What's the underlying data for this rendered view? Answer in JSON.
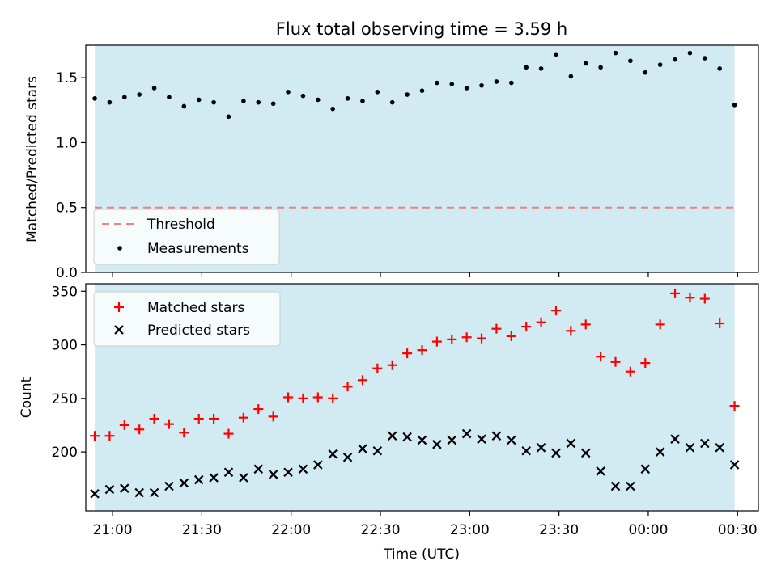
{
  "chart_data": [
    {
      "type": "scatter",
      "title": "Flux total observing time = 3.59 h",
      "ylabel": "Matched/Predicted stars",
      "xlim": [
        "20:51",
        "00:37"
      ],
      "ylim": [
        0,
        1.75
      ],
      "yticks": [
        0.0,
        0.5,
        1.0,
        1.5
      ],
      "ytick_labels": [
        "0.0",
        "0.5",
        "1.0",
        "1.5"
      ],
      "shaded_span": [
        "20:54",
        "00:29"
      ],
      "shaded_color": "#add8e6",
      "threshold": {
        "name": "Threshold",
        "value": 0.5,
        "color": "#f08080"
      },
      "legend": {
        "position": "lower-left",
        "entries": [
          "Threshold",
          "Measurements"
        ]
      },
      "series": [
        {
          "name": "Measurements",
          "color": "#000000",
          "marker": "dot",
          "x": [
            "20:54",
            "20:59",
            "21:04",
            "21:09",
            "21:14",
            "21:19",
            "21:24",
            "21:29",
            "21:34",
            "21:39",
            "21:44",
            "21:49",
            "21:54",
            "21:59",
            "22:04",
            "22:09",
            "22:14",
            "22:19",
            "22:24",
            "22:29",
            "22:34",
            "22:39",
            "22:44",
            "22:49",
            "22:54",
            "22:59",
            "23:04",
            "23:09",
            "23:14",
            "23:19",
            "23:24",
            "23:29",
            "23:34",
            "23:39",
            "23:44",
            "23:49",
            "23:54",
            "23:59",
            "00:04",
            "00:09",
            "00:14",
            "00:19",
            "00:24",
            "00:29"
          ],
          "y": [
            1.34,
            1.31,
            1.35,
            1.37,
            1.42,
            1.35,
            1.28,
            1.33,
            1.31,
            1.2,
            1.32,
            1.31,
            1.3,
            1.39,
            1.36,
            1.33,
            1.26,
            1.34,
            1.32,
            1.39,
            1.31,
            1.37,
            1.4,
            1.46,
            1.45,
            1.42,
            1.44,
            1.47,
            1.46,
            1.58,
            1.57,
            1.68,
            1.51,
            1.61,
            1.58,
            1.69,
            1.63,
            1.54,
            1.6,
            1.64,
            1.69,
            1.65,
            1.57,
            1.29
          ]
        }
      ]
    },
    {
      "type": "scatter",
      "xlabel": "Time (UTC)",
      "ylabel": "Count",
      "xlim": [
        "20:51",
        "00:37"
      ],
      "ylim": [
        145,
        357
      ],
      "xticks": [
        "21:00",
        "21:30",
        "22:00",
        "22:30",
        "23:00",
        "23:30",
        "00:00",
        "00:30"
      ],
      "yticks": [
        200,
        250,
        300,
        350
      ],
      "ytick_labels": [
        "200",
        "250",
        "300",
        "350"
      ],
      "shaded_span": [
        "20:54",
        "00:29"
      ],
      "shaded_color": "#add8e6",
      "legend": {
        "position": "upper-left",
        "entries": [
          "Matched stars",
          "Predicted stars"
        ]
      },
      "series": [
        {
          "name": "Matched stars",
          "color": "#ff0000",
          "marker": "plus",
          "x": [
            "20:54",
            "20:59",
            "21:04",
            "21:09",
            "21:14",
            "21:19",
            "21:24",
            "21:29",
            "21:34",
            "21:39",
            "21:44",
            "21:49",
            "21:54",
            "21:59",
            "22:04",
            "22:09",
            "22:14",
            "22:19",
            "22:24",
            "22:29",
            "22:34",
            "22:39",
            "22:44",
            "22:49",
            "22:54",
            "22:59",
            "23:04",
            "23:09",
            "23:14",
            "23:19",
            "23:24",
            "23:29",
            "23:34",
            "23:39",
            "23:44",
            "23:49",
            "23:54",
            "23:59",
            "00:04",
            "00:09",
            "00:14",
            "00:19",
            "00:24",
            "00:29"
          ],
          "y": [
            215,
            215,
            225,
            221,
            231,
            226,
            218,
            231,
            231,
            217,
            232,
            240,
            233,
            251,
            250,
            251,
            250,
            261,
            267,
            278,
            281,
            292,
            295,
            303,
            305,
            307,
            306,
            315,
            308,
            317,
            321,
            332,
            313,
            319,
            289,
            284,
            275,
            283,
            319,
            348,
            344,
            343,
            320,
            243
          ]
        },
        {
          "name": "Predicted stars",
          "color": "#000000",
          "marker": "x",
          "x": [
            "20:54",
            "20:59",
            "21:04",
            "21:09",
            "21:14",
            "21:19",
            "21:24",
            "21:29",
            "21:34",
            "21:39",
            "21:44",
            "21:49",
            "21:54",
            "21:59",
            "22:04",
            "22:09",
            "22:14",
            "22:19",
            "22:24",
            "22:29",
            "22:34",
            "22:39",
            "22:44",
            "22:49",
            "22:54",
            "22:59",
            "23:04",
            "23:09",
            "23:14",
            "23:19",
            "23:24",
            "23:29",
            "23:34",
            "23:39",
            "23:44",
            "23:49",
            "23:54",
            "23:59",
            "00:04",
            "00:09",
            "00:14",
            "00:19",
            "00:24",
            "00:29"
          ],
          "y": [
            161,
            165,
            166,
            162,
            162,
            168,
            171,
            174,
            176,
            181,
            176,
            184,
            179,
            181,
            184,
            188,
            198,
            195,
            203,
            201,
            215,
            214,
            211,
            207,
            211,
            217,
            212,
            215,
            211,
            201,
            204,
            199,
            208,
            199,
            182,
            168,
            168,
            184,
            200,
            212,
            204,
            208,
            204,
            188
          ]
        }
      ]
    }
  ]
}
